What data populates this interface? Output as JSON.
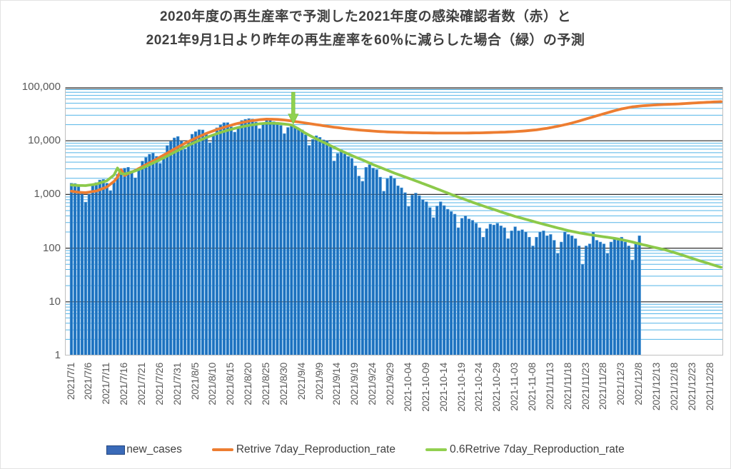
{
  "title": {
    "line1": "2020年度の再生産率で予測した2021年度の感染確認者数（赤）と",
    "line2": "2021年9月1日より昨年の再生産率を60％に減らした場合（緑）の予測"
  },
  "legend": {
    "items": [
      {
        "label": "new_cases",
        "type": "bar",
        "color": "#3a6ab8",
        "border": "#24477f"
      },
      {
        "label": "Retrive 7day_Reproduction_rate",
        "type": "line",
        "color": "#ed7d31"
      },
      {
        "label": "0.6Retrive 7day_Reproduction_rate",
        "type": "line",
        "color": "#92d050"
      }
    ]
  },
  "colors": {
    "bar_fill": "#1c70be",
    "bar_stroke": "#56a0dc",
    "orange_line": "#ed7d31",
    "green_line": "#8cc94a",
    "arrow_fill": "#8fd14f",
    "arrow_stroke": "#7cbf3e",
    "minor_grid": "#53b4e8",
    "major_grid": "#333333",
    "plot_top_border": "#808080",
    "plot_bottom_border": "#bfbfbf",
    "axis_text": "#595959",
    "title_text": "#404040"
  },
  "chart_data": {
    "type": "combo (daily bars + two prediction lines), logarithmic y-axis",
    "y_axis": {
      "scale": "log10",
      "min": 1,
      "max": 100000,
      "tick_labels": [
        "100,000",
        "10,000",
        "1,000",
        "100",
        "10",
        "1"
      ],
      "tick_values": [
        100000,
        10000,
        1000,
        100,
        10,
        1
      ]
    },
    "x_axis": {
      "start_date": "2021/7/1",
      "days_shown": 184,
      "tick_interval_days": 5,
      "tick_labels": [
        "2021/7/1",
        "2021/7/6",
        "2021/7/11",
        "2021/7/16",
        "2021/7/21",
        "2021/7/26",
        "2021/7/31",
        "2021/8/5",
        "2021/8/10",
        "2021/8/15",
        "2021/8/20",
        "2021/8/25",
        "2021/8/30",
        "2021/9/4",
        "2021/9/9",
        "2021/9/14",
        "2021/9/19",
        "2021/9/24",
        "2021/9/29",
        "2021-10-04",
        "2021-10-09",
        "2021-10-14",
        "2021-10-19",
        "2021-10-24",
        "2021-10-29",
        "2021-11-03",
        "2021-11-08",
        "2021/11/13",
        "2021/11/18",
        "2021/11/23",
        "2021/11/28",
        "2021/12/3",
        "2021/12/8",
        "2021/12/13",
        "2021/12/18",
        "2021/12/23",
        "2021/12/28"
      ]
    },
    "annotation": {
      "type": "down_arrow",
      "at_day_index": 62.5,
      "from_value": 80000,
      "to_value": 20500,
      "color": "#8fd14f"
    },
    "series": [
      {
        "name": "new_cases",
        "type": "bar",
        "color": "#1c70be",
        "start_day_index": 0,
        "values": [
          1620,
          1600,
          1480,
          1120,
          720,
          1020,
          1450,
          1660,
          1860,
          1910,
          1620,
          1180,
          1670,
          2380,
          2740,
          3090,
          3210,
          2770,
          2040,
          2910,
          4170,
          4900,
          5620,
          5890,
          5130,
          3800,
          5570,
          8160,
          9730,
          11330,
          12020,
          9950,
          7010,
          9640,
          13240,
          14790,
          16070,
          15920,
          13120,
          9200,
          12590,
          17460,
          19680,
          21700,
          21780,
          18200,
          14500,
          17700,
          23900,
          25100,
          25900,
          25500,
          22300,
          16800,
          21600,
          24300,
          24200,
          22700,
          22100,
          19300,
          13600,
          17700,
          20000,
          18500,
          16700,
          16000,
          12900,
          8200,
          10600,
          12400,
          11600,
          10400,
          10100,
          8200,
          4200,
          5800,
          6800,
          5700,
          5100,
          4700,
          3400,
          2200,
          1760,
          3200,
          3600,
          3100,
          2900,
          2100,
          1150,
          1970,
          2210,
          1980,
          1450,
          1330,
          1080,
          600,
          970,
          1060,
          950,
          800,
          730,
          570,
          370,
          610,
          730,
          620,
          530,
          480,
          430,
          240,
          360,
          400,
          350,
          330,
          290,
          240,
          160,
          230,
          280,
          270,
          290,
          260,
          240,
          150,
          210,
          250,
          210,
          220,
          200,
          160,
          110,
          160,
          200,
          210,
          170,
          180,
          140,
          80,
          130,
          200,
          180,
          170,
          150,
          110,
          50,
          110,
          120,
          200,
          140,
          130,
          120,
          80,
          130,
          150,
          140,
          160,
          130,
          110,
          60,
          120,
          170
        ]
      },
      {
        "name": "Retrive 7day_Reproduction_rate",
        "type": "line",
        "color": "#ed7d31",
        "points": [
          [
            0,
            1150
          ],
          [
            2,
            1100
          ],
          [
            4,
            1080
          ],
          [
            7,
            1160
          ],
          [
            10,
            1380
          ],
          [
            12,
            1750
          ],
          [
            13,
            2100
          ],
          [
            14,
            2900
          ],
          [
            15,
            2250
          ],
          [
            16,
            2450
          ],
          [
            18,
            2800
          ],
          [
            20,
            3300
          ],
          [
            23,
            4200
          ],
          [
            26,
            5400
          ],
          [
            29,
            7000
          ],
          [
            32,
            9000
          ],
          [
            35,
            11200
          ],
          [
            38,
            13700
          ],
          [
            41,
            16200
          ],
          [
            44,
            18700
          ],
          [
            47,
            21200
          ],
          [
            50,
            23200
          ],
          [
            53,
            24700
          ],
          [
            55,
            25300
          ],
          [
            58,
            25000
          ],
          [
            60,
            24400
          ],
          [
            62,
            23400
          ],
          [
            65,
            21900
          ],
          [
            68,
            20400
          ],
          [
            71,
            19100
          ],
          [
            74,
            17900
          ],
          [
            77,
            16900
          ],
          [
            80,
            16100
          ],
          [
            83,
            15500
          ],
          [
            86,
            15000
          ],
          [
            89,
            14600
          ],
          [
            92,
            14400
          ],
          [
            95,
            14200
          ],
          [
            98,
            14100
          ],
          [
            101,
            14000
          ],
          [
            104,
            13900
          ],
          [
            107,
            13900
          ],
          [
            110,
            13900
          ],
          [
            113,
            14000
          ],
          [
            116,
            14100
          ],
          [
            119,
            14300
          ],
          [
            122,
            14500
          ],
          [
            125,
            14800
          ],
          [
            128,
            15300
          ],
          [
            131,
            16000
          ],
          [
            134,
            17100
          ],
          [
            137,
            18600
          ],
          [
            140,
            20600
          ],
          [
            143,
            23300
          ],
          [
            146,
            26700
          ],
          [
            149,
            30500
          ],
          [
            152,
            34800
          ],
          [
            155,
            39300
          ],
          [
            158,
            42800
          ],
          [
            161,
            45000
          ],
          [
            164,
            46300
          ],
          [
            167,
            47400
          ],
          [
            170,
            48200
          ],
          [
            173,
            49400
          ],
          [
            176,
            50800
          ],
          [
            179,
            52100
          ],
          [
            183,
            53600
          ]
        ]
      },
      {
        "name": "0.6Retrive 7day_Reproduction_rate",
        "type": "line",
        "color": "#8cc94a",
        "points": [
          [
            0,
            1500
          ],
          [
            2,
            1470
          ],
          [
            4,
            1460
          ],
          [
            7,
            1560
          ],
          [
            10,
            1800
          ],
          [
            12,
            2300
          ],
          [
            13,
            3100
          ],
          [
            14,
            2450
          ],
          [
            15,
            2400
          ],
          [
            16,
            2500
          ],
          [
            18,
            2750
          ],
          [
            20,
            3100
          ],
          [
            23,
            3850
          ],
          [
            26,
            4800
          ],
          [
            29,
            6100
          ],
          [
            32,
            7700
          ],
          [
            35,
            9500
          ],
          [
            38,
            11500
          ],
          [
            41,
            13600
          ],
          [
            44,
            15700
          ],
          [
            47,
            17700
          ],
          [
            50,
            19400
          ],
          [
            53,
            20700
          ],
          [
            55,
            21300
          ],
          [
            58,
            21100
          ],
          [
            60,
            20500
          ],
          [
            62,
            19700
          ],
          [
            64,
            16600
          ],
          [
            66,
            13800
          ],
          [
            68,
            11700
          ],
          [
            70,
            10100
          ],
          [
            73,
            8100
          ],
          [
            76,
            6500
          ],
          [
            79,
            5300
          ],
          [
            82,
            4400
          ],
          [
            85,
            3600
          ],
          [
            88,
            3000
          ],
          [
            91,
            2500
          ],
          [
            94,
            2120
          ],
          [
            97,
            1790
          ],
          [
            100,
            1510
          ],
          [
            103,
            1270
          ],
          [
            107,
            1000
          ],
          [
            110,
            845
          ],
          [
            113,
            715
          ],
          [
            116,
            610
          ],
          [
            119,
            525
          ],
          [
            122,
            450
          ],
          [
            125,
            390
          ],
          [
            128,
            345
          ],
          [
            131,
            303
          ],
          [
            134,
            268
          ],
          [
            137,
            238
          ],
          [
            140,
            212
          ],
          [
            143,
            193
          ],
          [
            146,
            178
          ],
          [
            149,
            166
          ],
          [
            152,
            156
          ],
          [
            155,
            144
          ],
          [
            158,
            130
          ],
          [
            161,
            116
          ],
          [
            164,
            104
          ],
          [
            167,
            94
          ],
          [
            170,
            82
          ],
          [
            173,
            71
          ],
          [
            176,
            61
          ],
          [
            179,
            53
          ],
          [
            182,
            46
          ],
          [
            183,
            44
          ]
        ]
      }
    ]
  }
}
